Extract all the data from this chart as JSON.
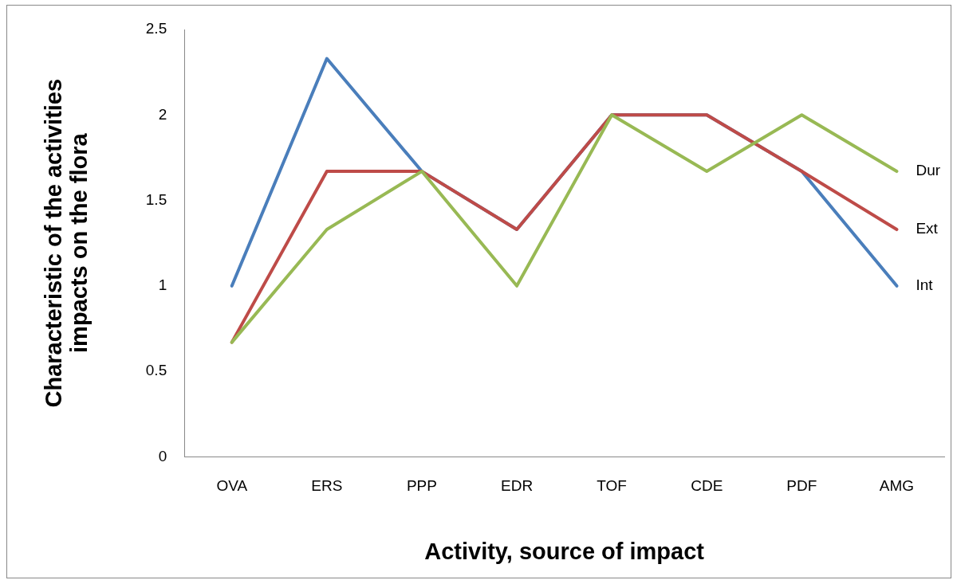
{
  "chart_data": {
    "type": "line",
    "xlabel": "Activity, source of impact",
    "ylabel": "Characteristic of the activities impacts on the flora",
    "categories": [
      "OVA",
      "ERS",
      "PPP",
      "EDR",
      "TOF",
      "CDE",
      "PDF",
      "AMG"
    ],
    "series": [
      {
        "name": "Int",
        "color": "#4a7ebb",
        "values": [
          1,
          2.33,
          1.67,
          1.33,
          2,
          2,
          1.67,
          1
        ]
      },
      {
        "name": "Ext",
        "color": "#be4b48",
        "values": [
          0.67,
          1.67,
          1.67,
          1.33,
          2,
          2,
          1.67,
          1.33
        ]
      },
      {
        "name": "Dur",
        "color": "#98b954",
        "values": [
          0.67,
          1.33,
          1.67,
          1,
          2,
          1.67,
          2,
          1.67
        ]
      }
    ],
    "ylim": [
      0,
      2.5
    ],
    "yticks": [
      0,
      0.5,
      1,
      1.5,
      2,
      2.5
    ],
    "grid": false,
    "legend": false,
    "marker": "none",
    "line_style": "solid"
  }
}
